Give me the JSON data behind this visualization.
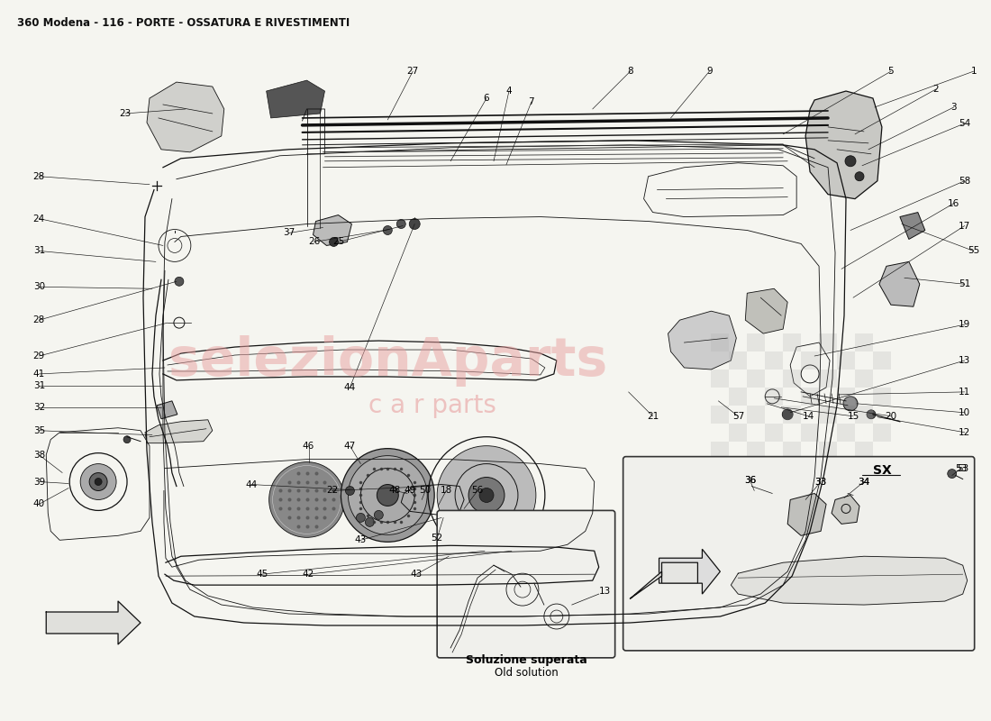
{
  "title": "360 Modena - 116 - PORTE - OSSATURA E RIVESTIMENTI",
  "title_fontsize": 8.5,
  "title_fontweight": "bold",
  "bg_color": "#f5f5f0",
  "fig_width": 11.0,
  "fig_height": 8.0,
  "watermark_line1": "selezionAparts",
  "watermark_line2": "c a r parts",
  "watermark_color": "#e8a0a0",
  "watermark_alpha": 0.5,
  "watermark_fontsize": 42,
  "watermark2_fontsize": 20,
  "subtitle_italian": "Soluzione superata",
  "subtitle_english": "Old solution",
  "inset_sx_label": "SX",
  "lc": "#111111",
  "lw_thin": 0.6,
  "lw_med": 0.9,
  "lw_thick": 1.4,
  "lfs": 7.5,
  "label_color": "#000000"
}
